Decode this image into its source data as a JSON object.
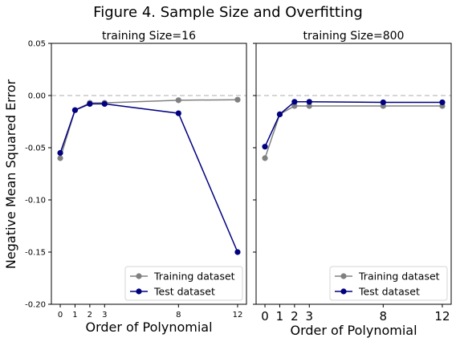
{
  "figure_title": "Figure 4. Sample Size and Overfitting",
  "shared_ylabel": "Negative Mean Squared Error",
  "colors": {
    "training": "#808080",
    "test": "#000080",
    "refline": "#c8c8c8"
  },
  "chart_data": [
    {
      "type": "line",
      "title": "training Size=16",
      "xlabel": "Order of Polynomial",
      "ylabel": "Negative Mean Squared Error",
      "x": [
        0,
        1,
        2,
        3,
        8,
        12
      ],
      "xticks": [
        "0",
        "1",
        "2",
        "3",
        "8",
        "12"
      ],
      "xlim": [
        -0.6,
        12.6
      ],
      "ylim": [
        -0.2,
        0.05
      ],
      "yticks": [
        "0.05",
        "0.00",
        "-0.05",
        "-0.10",
        "-0.15",
        "-0.20"
      ],
      "ytick_values": [
        0.05,
        0.0,
        -0.05,
        -0.1,
        -0.15,
        -0.2
      ],
      "reference_line": 0,
      "legend": "lower-right",
      "grid": false,
      "series": [
        {
          "name": "Training dataset",
          "values": [
            -0.06,
            -0.014,
            -0.007,
            -0.007,
            -0.0045,
            -0.004
          ]
        },
        {
          "name": "Test dataset",
          "values": [
            -0.055,
            -0.014,
            -0.008,
            -0.008,
            -0.017,
            -0.15
          ]
        }
      ]
    },
    {
      "type": "line",
      "title": "training Size=800",
      "xlabel": "Order of Polynomial",
      "x": [
        0,
        1,
        2,
        3,
        8,
        12
      ],
      "xticks": [
        "0",
        "1",
        "2",
        "3",
        "8",
        "12"
      ],
      "xlim": [
        -0.6,
        12.6
      ],
      "ylim": [
        -0.2,
        0.05
      ],
      "reference_line": 0,
      "legend": "lower-right",
      "grid": false,
      "series": [
        {
          "name": "Training dataset",
          "values": [
            -0.06,
            -0.018,
            -0.01,
            -0.01,
            -0.01,
            -0.01
          ]
        },
        {
          "name": "Test dataset",
          "values": [
            -0.049,
            -0.018,
            -0.006,
            -0.006,
            -0.0065,
            -0.0065
          ]
        }
      ]
    }
  ]
}
